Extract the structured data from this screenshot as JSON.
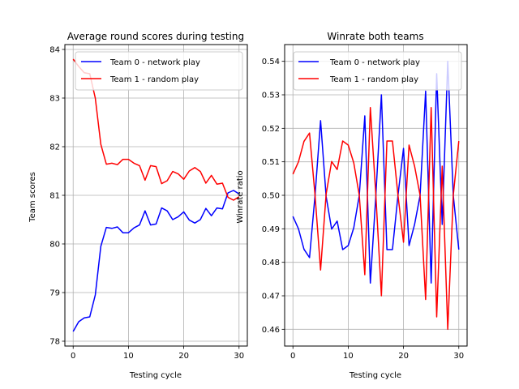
{
  "chart_data": [
    {
      "type": "line",
      "title": "Average round scores during testing",
      "xlabel": "Testing cycle",
      "ylabel": "Team scores",
      "xlim": [
        -1.5,
        31.5
      ],
      "ylim": [
        77.9,
        84.1
      ],
      "xticks": [
        0,
        10,
        20,
        30
      ],
      "yticks": [
        78,
        79,
        80,
        81,
        82,
        83,
        84
      ],
      "grid": true,
      "legend_position": "top-right",
      "x": [
        0,
        1,
        2,
        3,
        4,
        5,
        6,
        7,
        8,
        9,
        10,
        11,
        12,
        13,
        14,
        15,
        16,
        17,
        18,
        19,
        20,
        21,
        22,
        23,
        24,
        25,
        26,
        27,
        28,
        29,
        30
      ],
      "series": [
        {
          "name": "Team 0 - network play",
          "color": "#0000ff",
          "values": [
            78.2,
            78.4,
            78.48,
            78.5,
            78.95,
            79.95,
            80.34,
            80.32,
            80.35,
            80.23,
            80.23,
            80.33,
            80.39,
            80.68,
            80.39,
            80.41,
            80.74,
            80.68,
            80.5,
            80.56,
            80.66,
            80.49,
            80.43,
            80.5,
            80.73,
            80.58,
            80.74,
            80.72,
            81.05,
            81.1,
            81.03
          ]
        },
        {
          "name": "Team 1 - random play",
          "color": "#ff0000",
          "values": [
            83.8,
            83.65,
            83.52,
            83.5,
            83.0,
            82.05,
            81.64,
            81.66,
            81.63,
            81.74,
            81.74,
            81.66,
            81.61,
            81.31,
            81.61,
            81.59,
            81.24,
            81.3,
            81.49,
            81.44,
            81.33,
            81.5,
            81.57,
            81.49,
            81.25,
            81.41,
            81.23,
            81.25,
            80.96,
            80.9,
            80.97
          ]
        }
      ]
    },
    {
      "type": "line",
      "title": "Winrate both teams",
      "xlabel": "Testing cycle",
      "ylabel": "Winrate ratio",
      "xlim": [
        -1.5,
        31.5
      ],
      "ylim": [
        0.455,
        0.545
      ],
      "xticks": [
        0,
        10,
        20,
        30
      ],
      "yticks": [
        0.46,
        0.47,
        0.48,
        0.49,
        0.5,
        0.51,
        0.52,
        0.53,
        0.54
      ],
      "ytick_labels": [
        "0.46",
        "0.47",
        "0.48",
        "0.49",
        "0.50",
        "0.51",
        "0.52",
        "0.53",
        "0.54"
      ],
      "grid": true,
      "legend_position": "top-right",
      "x": [
        0,
        1,
        2,
        3,
        4,
        5,
        6,
        7,
        8,
        9,
        10,
        11,
        12,
        13,
        14,
        15,
        16,
        17,
        18,
        19,
        20,
        21,
        22,
        23,
        24,
        25,
        26,
        27,
        28,
        29,
        30
      ],
      "series": [
        {
          "name": "Team 0 - network play",
          "color": "#0000ff",
          "values": [
            0.4937,
            0.49,
            0.4839,
            0.4814,
            0.5,
            0.5223,
            0.4997,
            0.4899,
            0.4923,
            0.4838,
            0.485,
            0.4903,
            0.5,
            0.5237,
            0.4738,
            0.5,
            0.53,
            0.4838,
            0.4838,
            0.5,
            0.514,
            0.485,
            0.4913,
            0.5,
            0.5311,
            0.4738,
            0.5363,
            0.4913,
            0.54,
            0.5,
            0.4838
          ]
        },
        {
          "name": "Team 1 - random play",
          "color": "#ff0000",
          "values": [
            0.5063,
            0.51,
            0.5161,
            0.5186,
            0.5,
            0.4777,
            0.5003,
            0.5101,
            0.5077,
            0.5162,
            0.515,
            0.5097,
            0.5,
            0.4763,
            0.5262,
            0.5,
            0.47,
            0.5162,
            0.5162,
            0.5,
            0.486,
            0.515,
            0.5087,
            0.5,
            0.4689,
            0.5262,
            0.4637,
            0.5087,
            0.46,
            0.5,
            0.5162
          ]
        }
      ]
    }
  ]
}
